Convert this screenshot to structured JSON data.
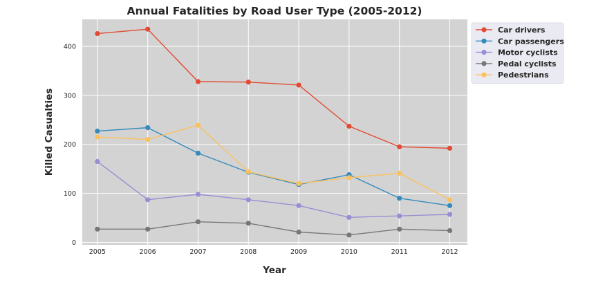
{
  "chart_data": {
    "type": "line",
    "title": "Annual Fatalities by Road User Type (2005-2012)",
    "xlabel": "Year",
    "ylabel": "Killed Casualties",
    "x": [
      2005,
      2006,
      2007,
      2008,
      2009,
      2010,
      2011,
      2012
    ],
    "x_tick_labels": [
      "2005",
      "2006",
      "2007",
      "2008",
      "2009",
      "2010",
      "2011",
      "2012"
    ],
    "yticks": [
      0,
      100,
      200,
      300,
      400
    ],
    "y_tick_labels": [
      "0",
      "100",
      "200",
      "300",
      "400"
    ],
    "ylim": [
      -5,
      455
    ],
    "xlim": [
      2004.7,
      2012.35
    ],
    "grid": true,
    "legend_position": "outside-top-right",
    "series": [
      {
        "name": "Car drivers",
        "color": "#e24a33",
        "values": [
          426,
          435,
          328,
          327,
          321,
          237,
          195,
          192
        ]
      },
      {
        "name": "Car passengers",
        "color": "#348abd",
        "values": [
          227,
          234,
          182,
          143,
          118,
          138,
          90,
          75
        ]
      },
      {
        "name": "Motor cyclists",
        "color": "#988ed5",
        "values": [
          165,
          87,
          98,
          87,
          75,
          51,
          54,
          57
        ]
      },
      {
        "name": "Pedal cyclists",
        "color": "#777777",
        "values": [
          27,
          27,
          42,
          39,
          21,
          15,
          27,
          24
        ]
      },
      {
        "name": "Pedestrians",
        "color": "#fbc15e",
        "values": [
          215,
          210,
          239,
          144,
          120,
          132,
          141,
          87
        ]
      }
    ]
  },
  "colors": {
    "plot_background": "#d3d3d3",
    "grid": "#ffffff",
    "legend_background": "#eaeaf2",
    "text": "#262626"
  }
}
